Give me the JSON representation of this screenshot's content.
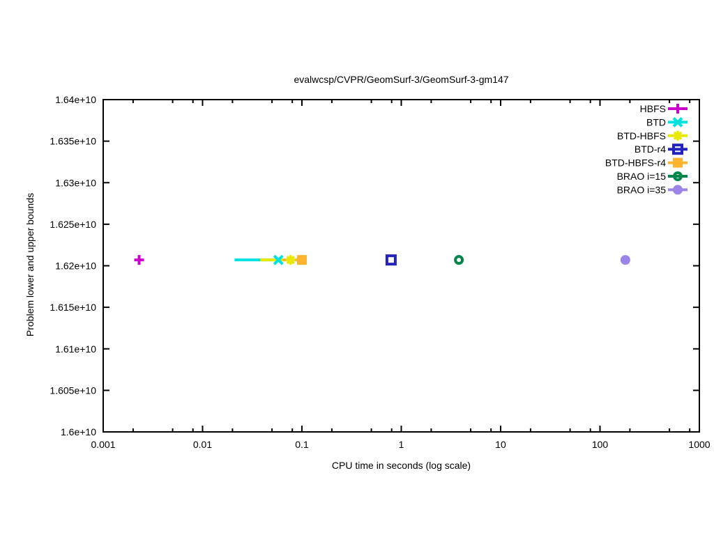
{
  "chart_data": {
    "type": "scatter",
    "title": "evalwcsp/CVPR/GeomSurf-3/GeomSurf-3-gm147",
    "xlabel": "CPU time in seconds (log scale)",
    "ylabel": "Problem lower and upper bounds",
    "x_scale": "log",
    "grid": false,
    "legend_position": "top-right-inside",
    "xlim": [
      0.001,
      1000
    ],
    "ylim": [
      16000000000,
      16400000000
    ],
    "x_ticks": [
      {
        "v": 0.001,
        "label": "0.001"
      },
      {
        "v": 0.01,
        "label": "0.01"
      },
      {
        "v": 0.1,
        "label": "0.1"
      },
      {
        "v": 1,
        "label": "1"
      },
      {
        "v": 10,
        "label": "10"
      },
      {
        "v": 100,
        "label": "100"
      },
      {
        "v": 1000,
        "label": "1000"
      }
    ],
    "x_minor_tick_multipliers": [
      2,
      5,
      8
    ],
    "y_ticks": [
      {
        "v": 16000000000,
        "label": "1.6e+10"
      },
      {
        "v": 16050000000,
        "label": "1.605e+10"
      },
      {
        "v": 16100000000,
        "label": "1.61e+10"
      },
      {
        "v": 16150000000,
        "label": "1.615e+10"
      },
      {
        "v": 16200000000,
        "label": "1.62e+10"
      },
      {
        "v": 16250000000,
        "label": "1.625e+10"
      },
      {
        "v": 16300000000,
        "label": "1.63e+10"
      },
      {
        "v": 16350000000,
        "label": "1.635e+10"
      },
      {
        "v": 16400000000,
        "label": "1.64e+10"
      }
    ],
    "bound_value": 16207000000,
    "series": [
      {
        "name": "HBFS",
        "color": "#CC00CC",
        "marker": "plus",
        "y": 16207000000,
        "line_x": null,
        "marker_x": [
          0.0023
        ]
      },
      {
        "name": "BTD",
        "color": "#00E1E1",
        "marker": "cross",
        "y": 16207000000,
        "line_x": [
          0.021,
          0.058
        ],
        "marker_x": [
          0.058
        ]
      },
      {
        "name": "BTD-HBFS",
        "color": "#E8E800",
        "marker": "asterisk",
        "y": 16207000000,
        "line_x": [
          0.038,
          0.077
        ],
        "marker_x": [
          0.077
        ]
      },
      {
        "name": "BTD-r4",
        "color": "#2323BE",
        "marker": "square-open",
        "y": 16207000000,
        "line_x": null,
        "marker_x": [
          0.79
        ]
      },
      {
        "name": "BTD-HBFS-r4",
        "color": "#FFB430",
        "marker": "square-filled",
        "y": 16207000000,
        "line_x": [
          0.064,
          0.1
        ],
        "marker_x": [
          0.1
        ]
      },
      {
        "name": "BRAO i=15",
        "color": "#00854B",
        "marker": "circle-open",
        "y": 16207000000,
        "line_x": null,
        "marker_x": [
          3.8
        ]
      },
      {
        "name": "BRAO i=35",
        "color": "#9C84E8",
        "marker": "circle-filled",
        "y": 16207000000,
        "line_x": null,
        "marker_x": [
          180
        ]
      }
    ]
  }
}
